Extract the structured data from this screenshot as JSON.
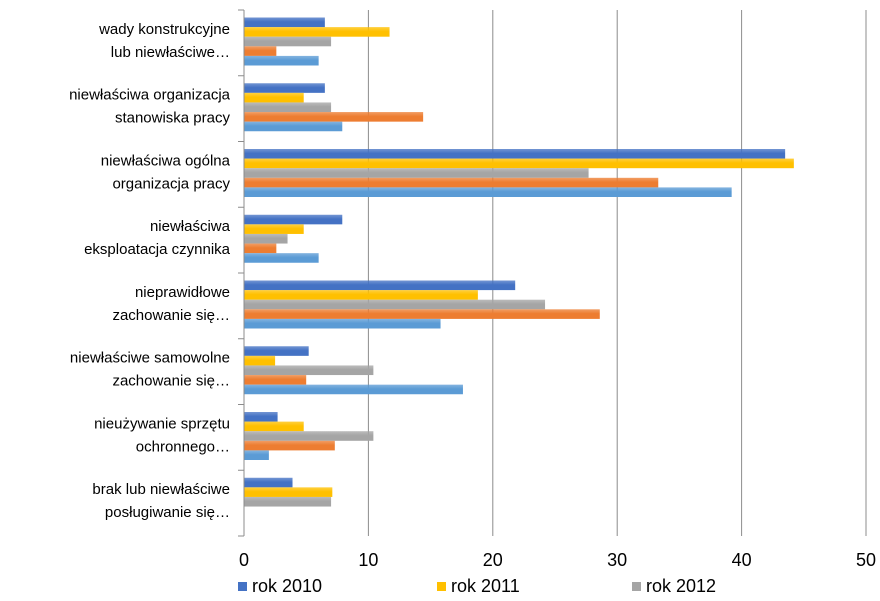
{
  "chart_data": {
    "type": "bar",
    "orientation": "horizontal",
    "categories": [
      [
        "wady konstrukcyjne",
        "lub niewłaściwe…"
      ],
      [
        "niewłaściwa organizacja",
        "stanowiska pracy"
      ],
      [
        "niewłaściwa ogólna",
        "organizacja pracy"
      ],
      [
        "niewłaściwa",
        "eksploatacja czynnika"
      ],
      [
        "nieprawidłowe",
        "zachowanie się…"
      ],
      [
        "niewłaściwe samowolne",
        "zachowanie się…"
      ],
      [
        "nieużywanie sprzętu",
        "ochronnego…"
      ],
      [
        "brak lub niewłaściwe",
        "posługiwanie się…"
      ]
    ],
    "series": [
      {
        "name": "rok 2010",
        "color": "#4472C4",
        "values": [
          6.5,
          6.5,
          43.5,
          7.9,
          21.8,
          5.2,
          2.7,
          3.9
        ]
      },
      {
        "name": "rok 2011",
        "color": "#FFC000",
        "values": [
          11.7,
          4.8,
          44.2,
          4.8,
          18.8,
          2.5,
          4.8,
          7.1
        ]
      },
      {
        "name": "rok 2012",
        "color": "#A5A5A5",
        "values": [
          7.0,
          7.0,
          27.7,
          3.5,
          24.2,
          10.4,
          10.4,
          7.0
        ]
      },
      {
        "color": "#ED7D31",
        "values": [
          2.6,
          14.4,
          33.3,
          2.6,
          28.6,
          5.0,
          7.3,
          0
        ]
      },
      {
        "color": "#5B9BD5",
        "values": [
          6.0,
          7.9,
          39.2,
          6.0,
          15.8,
          17.6,
          2.0,
          0
        ]
      }
    ],
    "xlim": [
      0,
      50
    ],
    "xticks": [
      0,
      10,
      20,
      30,
      40,
      50
    ],
    "grid": true,
    "legend_position": "bottom"
  }
}
